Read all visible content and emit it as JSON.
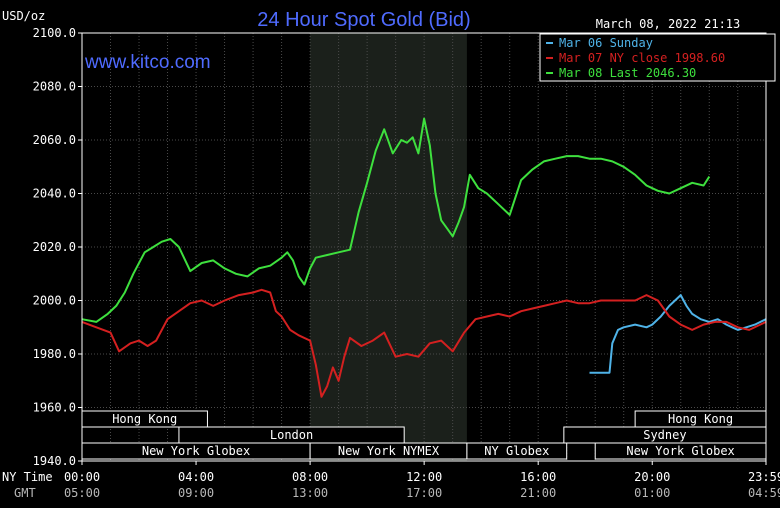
{
  "colors": {
    "background": "#000000",
    "plot_background": "#000000",
    "shaded_session": "#1b201b",
    "grid": "#4a4a4a",
    "axis_text": "#ffffff",
    "title": "#4f6bff",
    "website": "#4f6bff",
    "series_mar06": "#4fb3e8",
    "series_mar07": "#d42020",
    "series_mar08": "#3ee03e",
    "session_box_fill": "#000000",
    "session_box_stroke": "#ffffff"
  },
  "header": {
    "unit_label": "USD/oz",
    "title": "24 Hour Spot Gold (Bid)",
    "timestamp": "March 08, 2022 21:13",
    "website": "www.kitco.com"
  },
  "legend": [
    {
      "label": "Mar 06 Sunday",
      "color_key": "series_mar06"
    },
    {
      "label": "Mar 07 NY close 1998.60",
      "color_key": "series_mar07"
    },
    {
      "label": "Mar 08 Last 2046.30",
      "color_key": "series_mar08"
    }
  ],
  "time_axis": {
    "row1_label": "NY Time",
    "row2_label": "GMT",
    "ny_ticks": [
      "00:00",
      "04:00",
      "08:00",
      "12:00",
      "16:00",
      "20:00",
      "23:59"
    ],
    "gmt_ticks": [
      "05:00",
      "09:00",
      "13:00",
      "17:00",
      "21:00",
      "01:00",
      "04:59"
    ]
  },
  "sessions": [
    {
      "label": "Hong Kong",
      "start": 0.0,
      "end": 4.4,
      "row": 0
    },
    {
      "label": "Hong Kong",
      "start": 19.4,
      "end": 23.99,
      "row": 0
    },
    {
      "label": "London",
      "start": 3.4,
      "end": 11.3,
      "row": 1
    },
    {
      "label": "Sydney",
      "start": 16.9,
      "end": 23.99,
      "row": 1
    },
    {
      "label": "New York Globex",
      "start": 0.0,
      "end": 8.0,
      "row": 2
    },
    {
      "label": "New York NYMEX",
      "start": 8.0,
      "end": 13.5,
      "row": 2
    },
    {
      "label": "NY Globex",
      "start": 13.5,
      "end": 17.0,
      "row": 2
    },
    {
      "label": "New York Globex",
      "start": 18.0,
      "end": 23.99,
      "row": 2
    }
  ],
  "chart_data": {
    "type": "line",
    "title": "24 Hour Spot Gold (Bid)",
    "ylabel": "USD/oz",
    "xlabel": "NY Time",
    "ylim": [
      1940,
      2100
    ],
    "xlim": [
      0,
      23.99
    ],
    "y_ticks": [
      "2100.0",
      "2080.0",
      "2060.0",
      "2040.0",
      "2020.0",
      "2000.0",
      "1980.0",
      "1960.0",
      "1940.0"
    ],
    "y_tick_values": [
      2100,
      2080,
      2060,
      2040,
      2020,
      2000,
      1980,
      1960,
      1940
    ],
    "shaded_x_range": [
      8.0,
      13.5
    ],
    "grid": true,
    "legend_placement": "top-right",
    "series": [
      {
        "name": "Mar 06 Sunday",
        "color_key": "series_mar06",
        "x": [
          17.8,
          18.5,
          18.6,
          18.8,
          19.0,
          19.4,
          19.8,
          20.0,
          20.3,
          20.6,
          20.8,
          21.0,
          21.2,
          21.4,
          21.7,
          22.0,
          22.3,
          22.6,
          22.8,
          23.0,
          23.3,
          23.6,
          23.99
        ],
        "values": [
          1973.0,
          1973.0,
          1984.0,
          1989.0,
          1990.0,
          1991.0,
          1990.0,
          1991.0,
          1994.0,
          1998.0,
          2000.0,
          2002.0,
          1998.0,
          1995.0,
          1993.0,
          1992.0,
          1993.0,
          1991.0,
          1990.0,
          1989.0,
          1990.0,
          1991.0,
          1993.0
        ]
      },
      {
        "name": "Mar 07 NY close 1998.60",
        "color_key": "series_mar07",
        "x": [
          0.0,
          0.5,
          1.0,
          1.3,
          1.7,
          2.0,
          2.3,
          2.6,
          3.0,
          3.4,
          3.8,
          4.2,
          4.6,
          5.0,
          5.5,
          6.0,
          6.3,
          6.6,
          6.8,
          7.0,
          7.3,
          7.6,
          8.0,
          8.2,
          8.4,
          8.6,
          8.8,
          9.0,
          9.2,
          9.4,
          9.8,
          10.2,
          10.6,
          11.0,
          11.4,
          11.8,
          12.2,
          12.6,
          13.0,
          13.4,
          13.8,
          14.2,
          14.6,
          15.0,
          15.4,
          15.8,
          16.2,
          16.6,
          17.0,
          17.4,
          17.8,
          18.2,
          18.6,
          19.0,
          19.4,
          19.8,
          20.2,
          20.6,
          21.0,
          21.4,
          21.8,
          22.2,
          22.6,
          23.0,
          23.4,
          23.99
        ],
        "values": [
          1992.0,
          1990.0,
          1988.0,
          1981.0,
          1984.0,
          1985.0,
          1983.0,
          1985.0,
          1993.0,
          1996.0,
          1999.0,
          2000.0,
          1998.0,
          2000.0,
          2002.0,
          2003.0,
          2004.0,
          2003.0,
          1996.0,
          1994.0,
          1989.0,
          1987.0,
          1985.0,
          1976.0,
          1964.0,
          1968.0,
          1975.0,
          1970.0,
          1979.0,
          1986.0,
          1983.0,
          1985.0,
          1988.0,
          1979.0,
          1980.0,
          1979.0,
          1984.0,
          1985.0,
          1981.0,
          1988.0,
          1993.0,
          1994.0,
          1995.0,
          1994.0,
          1996.0,
          1997.0,
          1998.0,
          1999.0,
          2000.0,
          1999.0,
          1999.0,
          2000.0,
          2000.0,
          2000.0,
          2000.0,
          2002.0,
          2000.0,
          1994.0,
          1991.0,
          1989.0,
          1991.0,
          1992.0,
          1992.0,
          1990.0,
          1989.0,
          1992.0
        ]
      },
      {
        "name": "Mar 08 Last 2046.30",
        "color_key": "series_mar08",
        "x": [
          0.0,
          0.5,
          0.9,
          1.2,
          1.5,
          1.8,
          2.2,
          2.5,
          2.8,
          3.1,
          3.4,
          3.8,
          4.2,
          4.6,
          5.0,
          5.4,
          5.8,
          6.2,
          6.6,
          7.0,
          7.2,
          7.4,
          7.6,
          7.8,
          8.0,
          8.2,
          8.6,
          9.0,
          9.4,
          9.7,
          10.0,
          10.3,
          10.6,
          10.9,
          11.2,
          11.4,
          11.6,
          11.8,
          12.0,
          12.2,
          12.4,
          12.6,
          12.8,
          13.0,
          13.2,
          13.4,
          13.6,
          13.9,
          14.2,
          14.6,
          15.0,
          15.4,
          15.8,
          16.2,
          16.6,
          17.0,
          17.4,
          17.8,
          18.2,
          18.6,
          19.0,
          19.4,
          19.8,
          20.2,
          20.6,
          21.0,
          21.4,
          21.8,
          22.0
        ],
        "values": [
          1993.0,
          1992.0,
          1995.0,
          1998.0,
          2003.0,
          2010.0,
          2018.0,
          2020.0,
          2022.0,
          2023.0,
          2020.0,
          2011.0,
          2014.0,
          2015.0,
          2012.0,
          2010.0,
          2009.0,
          2012.0,
          2013.0,
          2016.0,
          2018.0,
          2015.0,
          2009.0,
          2006.0,
          2012.0,
          2016.0,
          2017.0,
          2018.0,
          2019.0,
          2033.0,
          2044.0,
          2056.0,
          2064.0,
          2055.0,
          2060.0,
          2059.0,
          2061.0,
          2055.0,
          2068.0,
          2058.0,
          2040.0,
          2030.0,
          2027.0,
          2024.0,
          2029.0,
          2035.0,
          2047.0,
          2042.0,
          2040.0,
          2036.0,
          2032.0,
          2045.0,
          2049.0,
          2052.0,
          2053.0,
          2054.0,
          2054.0,
          2053.0,
          2053.0,
          2052.0,
          2050.0,
          2047.0,
          2043.0,
          2041.0,
          2040.0,
          2042.0,
          2044.0,
          2043.0,
          2046.3
        ]
      }
    ]
  }
}
